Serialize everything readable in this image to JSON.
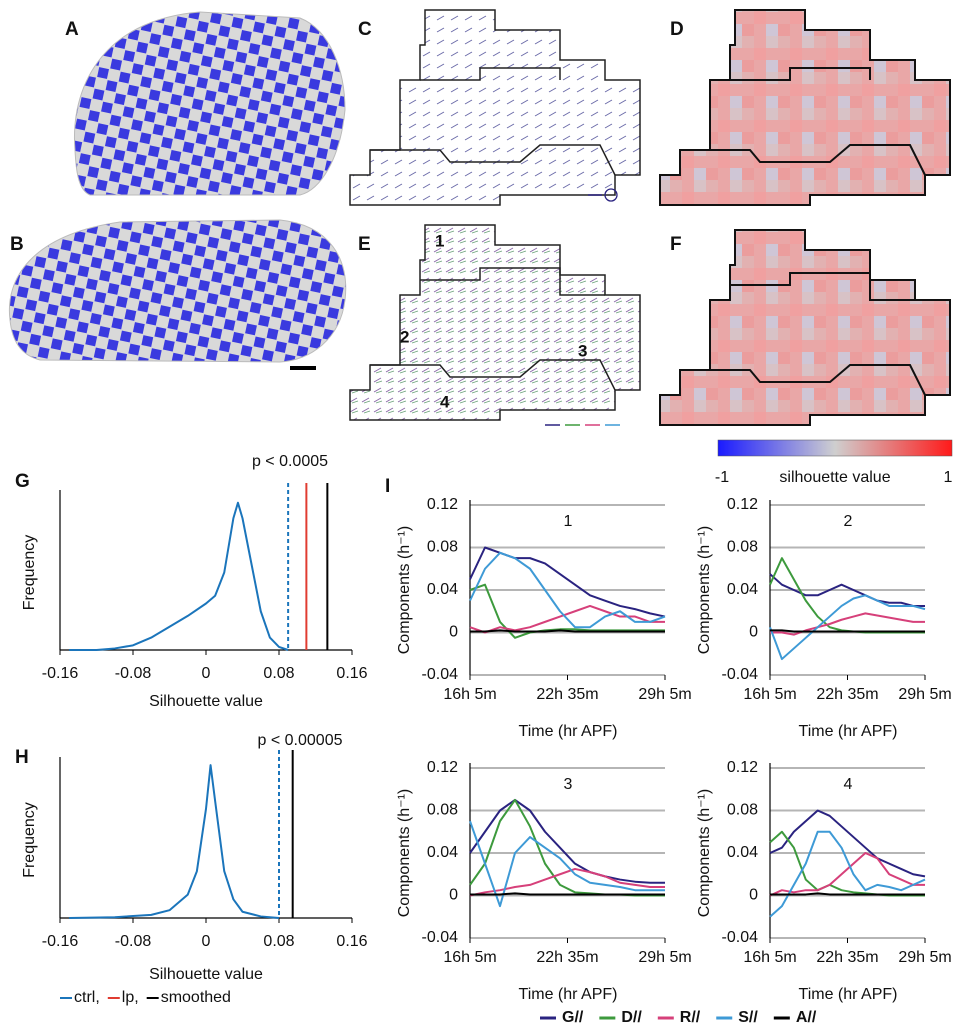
{
  "panel_labels": [
    "A",
    "B",
    "C",
    "D",
    "E",
    "F",
    "G",
    "H",
    "I"
  ],
  "region_labels": [
    "1",
    "2",
    "3",
    "4"
  ],
  "colorbar": {
    "label": "silhouette value",
    "min": -1,
    "max": 1,
    "colors": [
      "#1a1aff",
      "#cfcfcf",
      "#ff1a1a"
    ]
  },
  "chart_data": [
    {
      "type": "line",
      "title": "p < 0.0005",
      "xlabel": "Silhouette value",
      "ylabel": "Frequency",
      "xlim": [
        -0.16,
        0.16
      ],
      "xticks": [
        -0.16,
        -0.08,
        0,
        0.08,
        0.16
      ],
      "ylim": [
        0,
        1
      ],
      "x": [
        -0.15,
        -0.12,
        -0.1,
        -0.08,
        -0.06,
        -0.04,
        -0.02,
        0,
        0.01,
        0.02,
        0.03,
        0.035,
        0.04,
        0.05,
        0.06,
        0.07,
        0.08,
        0.09
      ],
      "series": [
        {
          "color": "#1b75bb",
          "values": [
            0,
            0,
            0.01,
            0.03,
            0.08,
            0.15,
            0.22,
            0.3,
            0.35,
            0.5,
            0.85,
            0.95,
            0.85,
            0.55,
            0.25,
            0.08,
            0.02,
            0
          ]
        }
      ],
      "vlines": [
        {
          "value": 0.09,
          "color": "#1b75bb",
          "dashed": true
        },
        {
          "value": 0.11,
          "color": "#e03c31",
          "dashed": false
        },
        {
          "value": 0.133,
          "color": "#000000",
          "dashed": false
        }
      ]
    },
    {
      "type": "line",
      "title": "p < 0.00005",
      "xlabel": "Silhouette value",
      "ylabel": "Frequency",
      "xlim": [
        -0.16,
        0.16
      ],
      "xticks": [
        -0.16,
        -0.08,
        0,
        0.08,
        0.16
      ],
      "ylim": [
        0,
        1
      ],
      "x": [
        -0.15,
        -0.1,
        -0.06,
        -0.04,
        -0.02,
        -0.01,
        0,
        0.005,
        0.01,
        0.02,
        0.03,
        0.04,
        0.06,
        0.08
      ],
      "series": [
        {
          "color": "#1b75bb",
          "values": [
            0,
            0.005,
            0.02,
            0.05,
            0.15,
            0.3,
            0.7,
            0.98,
            0.75,
            0.3,
            0.12,
            0.04,
            0.01,
            0
          ]
        }
      ],
      "vlines": [
        {
          "value": 0.08,
          "color": "#1b75bb",
          "dashed": true
        },
        {
          "value": 0.095,
          "color": "#000000",
          "dashed": false
        }
      ],
      "legend": [
        {
          "name": "ctrl,",
          "color": "#1b75bb"
        },
        {
          "name": "lp,",
          "color": "#e03c31"
        },
        {
          "name": "smoothed",
          "color": "#000000"
        }
      ]
    },
    {
      "type": "line",
      "title": "1",
      "xlabel": "Time (hr APF)",
      "ylabel": "Components (h⁻¹)",
      "grid": true,
      "legend": "bottom",
      "xlim": [
        965,
        1745
      ],
      "xticks": [
        {
          "value": 965,
          "label": "16h 5m"
        },
        {
          "value": 1355,
          "label": "22h 35m"
        },
        {
          "value": 1745,
          "label": "29h 5m"
        }
      ],
      "ylim": [
        -0.04,
        0.12
      ],
      "yticks": [
        -0.04,
        0,
        0.04,
        0.08,
        0.12
      ],
      "x": [
        965,
        1025,
        1085,
        1145,
        1205,
        1265,
        1325,
        1385,
        1445,
        1505,
        1565,
        1625,
        1685,
        1745
      ],
      "series": [
        {
          "name": "G//",
          "color": "#2a2380",
          "values": [
            0.05,
            0.08,
            0.075,
            0.07,
            0.07,
            0.065,
            0.055,
            0.045,
            0.035,
            0.03,
            0.025,
            0.022,
            0.018,
            0.015
          ]
        },
        {
          "name": "D//",
          "color": "#3d9a3d",
          "values": [
            0.04,
            0.045,
            0.01,
            -0.005,
            0,
            0.002,
            0.003,
            0.003,
            0.002,
            0.002,
            0.002,
            0.002,
            0.002,
            0.002
          ]
        },
        {
          "name": "R//",
          "color": "#d6407a",
          "values": [
            0.005,
            0,
            0.005,
            0.002,
            0.005,
            0.01,
            0.015,
            0.02,
            0.025,
            0.02,
            0.015,
            0.015,
            0.01,
            0.01
          ]
        },
        {
          "name": "S//",
          "color": "#3e9ad6",
          "values": [
            0.03,
            0.06,
            0.075,
            0.07,
            0.06,
            0.04,
            0.02,
            0.005,
            0.005,
            0.015,
            0.02,
            0.01,
            0.01,
            0.015
          ]
        },
        {
          "name": "A//",
          "color": "#000000",
          "values": [
            0.001,
            0.001,
            0.002,
            0.001,
            0.001,
            0.001,
            0.002,
            0.001,
            0.001,
            0.001,
            0.001,
            0.001,
            0.001,
            0.001
          ]
        }
      ]
    },
    {
      "type": "line",
      "title": "2",
      "xlabel": "Time (hr APF)",
      "ylabel": "Components (h⁻¹)",
      "grid": true,
      "xlim": [
        965,
        1745
      ],
      "xticks": [
        {
          "value": 965,
          "label": "16h 5m"
        },
        {
          "value": 1355,
          "label": "22h 35m"
        },
        {
          "value": 1745,
          "label": "29h 5m"
        }
      ],
      "ylim": [
        -0.04,
        0.12
      ],
      "yticks": [
        -0.04,
        0,
        0.04,
        0.08,
        0.12
      ],
      "x": [
        965,
        1025,
        1085,
        1145,
        1205,
        1265,
        1325,
        1385,
        1445,
        1505,
        1565,
        1625,
        1685,
        1745
      ],
      "series": [
        {
          "name": "G//",
          "color": "#2a2380",
          "values": [
            0.055,
            0.045,
            0.04,
            0.035,
            0.035,
            0.04,
            0.045,
            0.04,
            0.035,
            0.03,
            0.028,
            0.028,
            0.025,
            0.025
          ]
        },
        {
          "name": "D//",
          "color": "#3d9a3d",
          "values": [
            0.045,
            0.07,
            0.05,
            0.03,
            0.015,
            0.005,
            0.002,
            0.001,
            0,
            0,
            0,
            0,
            0,
            0
          ]
        },
        {
          "name": "R//",
          "color": "#d6407a",
          "values": [
            0,
            0,
            -0.002,
            0.002,
            0.005,
            0.008,
            0.012,
            0.015,
            0.018,
            0.016,
            0.014,
            0.012,
            0.01,
            0.01
          ]
        },
        {
          "name": "S//",
          "color": "#3e9ad6",
          "values": [
            0.005,
            -0.025,
            -0.015,
            -0.005,
            0.005,
            0.015,
            0.025,
            0.032,
            0.035,
            0.03,
            0.025,
            0.025,
            0.025,
            0.022
          ]
        },
        {
          "name": "A//",
          "color": "#000000",
          "values": [
            0.002,
            0.002,
            0.001,
            0.001,
            0.001,
            0.001,
            0.001,
            0.001,
            0.001,
            0.001,
            0.001,
            0.001,
            0.001,
            0.001
          ]
        }
      ]
    },
    {
      "type": "line",
      "title": "3",
      "xlabel": "Time (hr APF)",
      "ylabel": "Components (h⁻¹)",
      "grid": true,
      "xlim": [
        965,
        1745
      ],
      "xticks": [
        {
          "value": 965,
          "label": "16h 5m"
        },
        {
          "value": 1355,
          "label": "22h 35m"
        },
        {
          "value": 1745,
          "label": "29h 5m"
        }
      ],
      "ylim": [
        -0.04,
        0.12
      ],
      "yticks": [
        -0.04,
        0,
        0.04,
        0.08,
        0.12
      ],
      "x": [
        965,
        1025,
        1085,
        1145,
        1205,
        1265,
        1325,
        1385,
        1445,
        1505,
        1565,
        1625,
        1685,
        1745
      ],
      "series": [
        {
          "name": "G//",
          "color": "#2a2380",
          "values": [
            0.04,
            0.06,
            0.08,
            0.09,
            0.08,
            0.06,
            0.045,
            0.03,
            0.022,
            0.018,
            0.015,
            0.013,
            0.012,
            0.012
          ]
        },
        {
          "name": "D//",
          "color": "#3d9a3d",
          "values": [
            0.01,
            0.03,
            0.07,
            0.09,
            0.065,
            0.03,
            0.01,
            0.003,
            0.002,
            0.001,
            0.001,
            0,
            0,
            0
          ]
        },
        {
          "name": "R//",
          "color": "#d6407a",
          "values": [
            0,
            0.003,
            0.005,
            0.008,
            0.01,
            0.015,
            0.02,
            0.025,
            0.022,
            0.018,
            0.012,
            0.01,
            0.008,
            0.008
          ]
        },
        {
          "name": "S//",
          "color": "#3e9ad6",
          "values": [
            0.07,
            0.03,
            -0.01,
            0.04,
            0.055,
            0.045,
            0.035,
            0.02,
            0.012,
            0.01,
            0.008,
            0.005,
            0.005,
            0.005
          ]
        },
        {
          "name": "A//",
          "color": "#000000",
          "values": [
            0.001,
            0.001,
            0.001,
            0.002,
            0.001,
            0.001,
            0.001,
            0.001,
            0.001,
            0.001,
            0.001,
            0.001,
            0.001,
            0.001
          ]
        }
      ]
    },
    {
      "type": "line",
      "title": "4",
      "xlabel": "Time (hr APF)",
      "ylabel": "Components (h⁻¹)",
      "grid": true,
      "xlim": [
        965,
        1745
      ],
      "xticks": [
        {
          "value": 965,
          "label": "16h 5m"
        },
        {
          "value": 1355,
          "label": "22h 35m"
        },
        {
          "value": 1745,
          "label": "29h 5m"
        }
      ],
      "ylim": [
        -0.04,
        0.12
      ],
      "yticks": [
        -0.04,
        0,
        0.04,
        0.08,
        0.12
      ],
      "x": [
        965,
        1025,
        1085,
        1145,
        1205,
        1265,
        1325,
        1385,
        1445,
        1505,
        1565,
        1625,
        1685,
        1745
      ],
      "series": [
        {
          "name": "G//",
          "color": "#2a2380",
          "values": [
            0.04,
            0.045,
            0.06,
            0.07,
            0.08,
            0.075,
            0.065,
            0.055,
            0.045,
            0.035,
            0.03,
            0.025,
            0.02,
            0.018
          ]
        },
        {
          "name": "D//",
          "color": "#3d9a3d",
          "values": [
            0.05,
            0.06,
            0.045,
            0.015,
            0.005,
            0.01,
            0.005,
            0.003,
            0.002,
            0.001,
            0,
            0,
            0,
            0
          ]
        },
        {
          "name": "R//",
          "color": "#d6407a",
          "values": [
            0,
            0.005,
            0.003,
            0.005,
            0.005,
            0.01,
            0.02,
            0.03,
            0.04,
            0.035,
            0.02,
            0.015,
            0.01,
            0.01
          ]
        },
        {
          "name": "S//",
          "color": "#3e9ad6",
          "values": [
            -0.02,
            -0.01,
            0.01,
            0.03,
            0.06,
            0.06,
            0.045,
            0.02,
            0.005,
            0.01,
            0.008,
            0.005,
            0.01,
            0.015
          ]
        },
        {
          "name": "A//",
          "color": "#000000",
          "values": [
            0.001,
            0.001,
            0.001,
            0.001,
            0.002,
            0.001,
            0.001,
            0.001,
            0.001,
            0.001,
            0.001,
            0.001,
            0.001,
            0.001
          ]
        }
      ]
    }
  ]
}
